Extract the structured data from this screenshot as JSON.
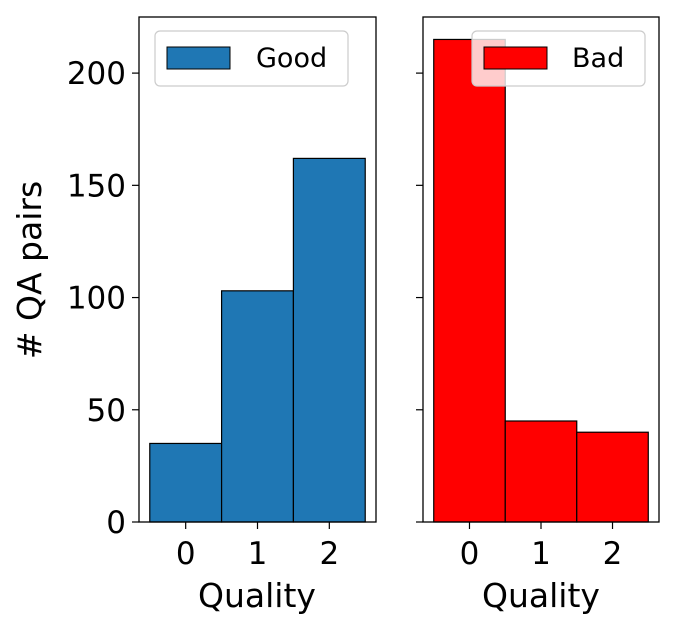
{
  "chart_data": [
    {
      "type": "bar",
      "categories": [
        "0",
        "1",
        "2"
      ],
      "series": [
        {
          "name": "Good",
          "values": [
            35,
            103,
            162
          ],
          "color": "#1f77b4"
        }
      ],
      "title": "",
      "xlabel": "Quality",
      "ylabel": "# QA pairs",
      "ylim": [
        0,
        225
      ],
      "yticks": [
        "0",
        "50",
        "100",
        "150",
        "200"
      ],
      "legend": "top-right",
      "grid": false
    },
    {
      "type": "bar",
      "categories": [
        "0",
        "1",
        "2"
      ],
      "series": [
        {
          "name": "Bad",
          "values": [
            215,
            45,
            40
          ],
          "color": "#ff0000"
        }
      ],
      "title": "",
      "xlabel": "Quality",
      "ylabel": "",
      "ylim": [
        0,
        225
      ],
      "shared_y": true,
      "legend": "top-right",
      "grid": false
    }
  ]
}
